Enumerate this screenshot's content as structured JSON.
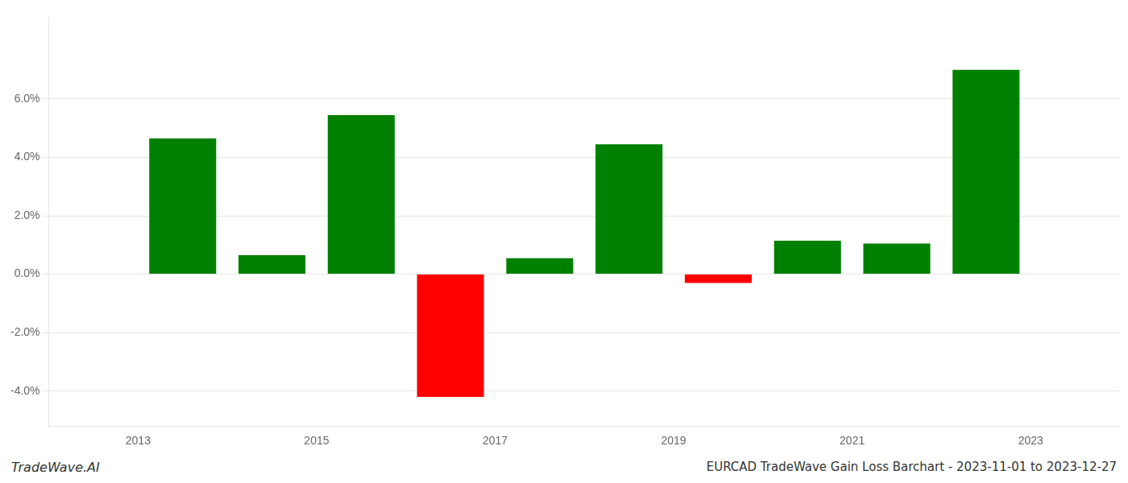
{
  "chart_data": {
    "type": "bar",
    "x": [
      2013.5,
      2014.5,
      2015.5,
      2016.5,
      2017.5,
      2018.5,
      2019.5,
      2020.5,
      2021.5,
      2022.5
    ],
    "values": [
      0.0465,
      0.0065,
      0.0545,
      -0.042,
      0.0055,
      0.0445,
      -0.003,
      0.0115,
      0.0105,
      0.07
    ],
    "colors": [
      "#008000",
      "#008000",
      "#008000",
      "#ff0000",
      "#008000",
      "#008000",
      "#ff0000",
      "#008000",
      "#008000",
      "#008000"
    ],
    "xlim": [
      2012.0,
      2024.0
    ],
    "xticks": [
      2013,
      2015,
      2017,
      2019,
      2021,
      2023
    ],
    "ylim": [
      -0.052,
      0.088
    ],
    "yticks": [
      {
        "value": -0.04,
        "label": "-4.0%"
      },
      {
        "value": -0.02,
        "label": "-2.0%"
      },
      {
        "value": 0.0,
        "label": "0.0%"
      },
      {
        "value": 0.02,
        "label": "2.0%"
      },
      {
        "value": 0.04,
        "label": "4.0%"
      },
      {
        "value": 0.06,
        "label": "6.0%"
      }
    ],
    "grid": true,
    "annotations": [
      "TradeWave.AI",
      "EURCAD TradeWave Gain Loss Barchart - 2023-11-01 to 2023-12-27"
    ]
  }
}
